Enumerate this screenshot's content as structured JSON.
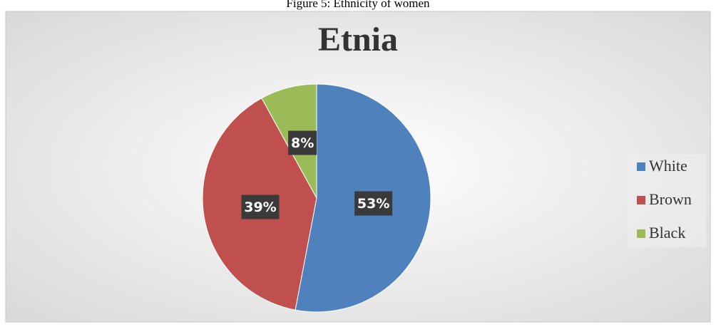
{
  "caption": "Figure 5: Ethnicity of women",
  "chart_data": {
    "type": "pie",
    "title": "Etnia",
    "categories": [
      "White",
      "Brown",
      "Black"
    ],
    "values": [
      53,
      39,
      8
    ],
    "value_labels": [
      "53%",
      "39%",
      "8%"
    ],
    "colors": [
      "#4f81bd",
      "#c0504d",
      "#9bbb59"
    ],
    "legend": "right"
  }
}
